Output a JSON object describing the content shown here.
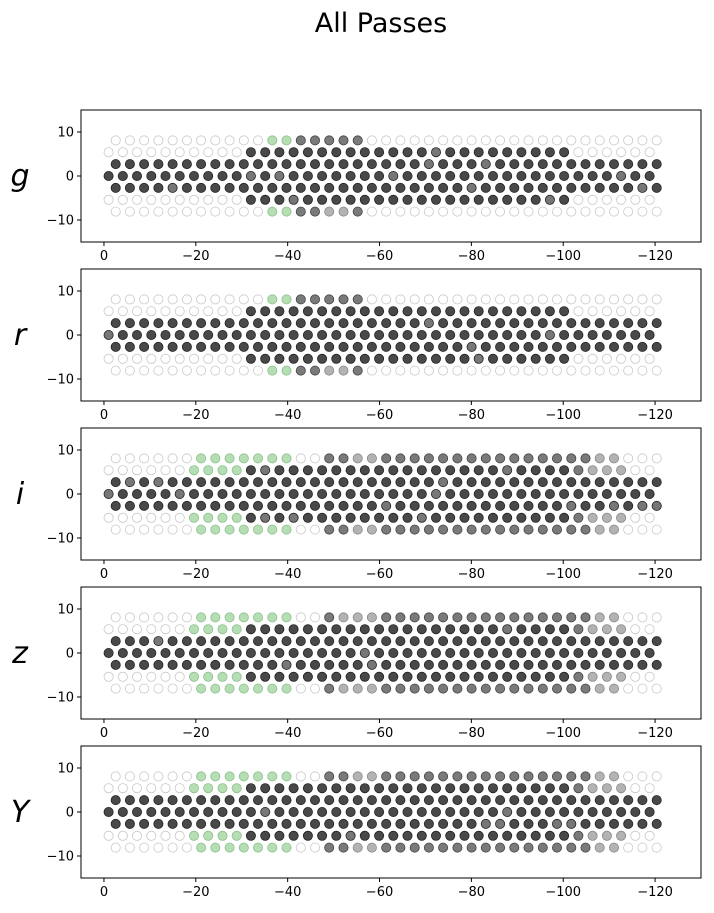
{
  "title": "All Passes",
  "colors": {
    "dense": "#3a3a3a",
    "medium": "#6b6b6b",
    "light": "#a6a6a6",
    "green": "#a8d8a8",
    "empty_edge": "#c8c8c8"
  },
  "chart_data": [
    {
      "type": "scatter",
      "label": "g",
      "x_axis_inverted": true,
      "xlim": [
        5,
        -130
      ],
      "ylim": [
        -15,
        15
      ],
      "xticks": [
        0,
        -20,
        -40,
        -60,
        -80,
        -100,
        -120
      ],
      "xtick_labels": [
        "0",
        "−20",
        "−40",
        "−60",
        "−80",
        "−100",
        "−120"
      ],
      "yticks": [
        10,
        0,
        -10
      ],
      "ytick_labels": [
        "10",
        "0",
        "−10"
      ],
      "regions": [
        {
          "x0": -36,
          "x1": -40,
          "y0": -9,
          "y1": 10,
          "shade": "green"
        },
        {
          "x0": -42,
          "x1": -56,
          "y0": -9,
          "y1": 10,
          "shade": "medium"
        },
        {
          "x0": -46,
          "x1": -53,
          "y0": -9,
          "y1": -2,
          "shade": "light"
        }
      ]
    },
    {
      "type": "scatter",
      "label": "r",
      "x_axis_inverted": true,
      "xlim": [
        5,
        -130
      ],
      "ylim": [
        -15,
        15
      ],
      "xticks": [
        0,
        -20,
        -40,
        -60,
        -80,
        -100,
        -120
      ],
      "xtick_labels": [
        "0",
        "−20",
        "−40",
        "−60",
        "−80",
        "−100",
        "−120"
      ],
      "yticks": [
        10,
        0,
        -10
      ],
      "ytick_labels": [
        "10",
        "0",
        "−10"
      ],
      "regions": [
        {
          "x0": -36,
          "x1": -40,
          "y0": -9,
          "y1": 10,
          "shade": "green"
        },
        {
          "x0": -42,
          "x1": -56,
          "y0": -9,
          "y1": 10,
          "shade": "medium"
        },
        {
          "x0": -46,
          "x1": -53,
          "y0": -9,
          "y1": -2,
          "shade": "light"
        }
      ]
    },
    {
      "type": "scatter",
      "label": "i",
      "x_axis_inverted": true,
      "xlim": [
        5,
        -130
      ],
      "ylim": [
        -15,
        15
      ],
      "xticks": [
        0,
        -20,
        -40,
        -60,
        -80,
        -100,
        -120
      ],
      "xtick_labels": [
        "0",
        "−20",
        "−40",
        "−60",
        "−80",
        "−100",
        "−120"
      ],
      "yticks": [
        10,
        0,
        -10
      ],
      "ytick_labels": [
        "10",
        "0",
        "−10"
      ],
      "regions": [
        {
          "x0": -19,
          "x1": -42,
          "y0": -10,
          "y1": 11,
          "shade": "green"
        },
        {
          "x0": -49,
          "x1": -113,
          "y0": -10,
          "y1": 11,
          "shade": "medium"
        },
        {
          "x0": -54,
          "x1": -60,
          "y0": -10,
          "y1": 11,
          "shade": "light"
        },
        {
          "x0": -106,
          "x1": -113,
          "y0": -10,
          "y1": 11,
          "shade": "light"
        }
      ]
    },
    {
      "type": "scatter",
      "label": "z",
      "x_axis_inverted": true,
      "xlim": [
        5,
        -130
      ],
      "ylim": [
        -15,
        15
      ],
      "xticks": [
        0,
        -20,
        -40,
        -60,
        -80,
        -100,
        -120
      ],
      "xtick_labels": [
        "0",
        "−20",
        "−40",
        "−60",
        "−80",
        "−100",
        "−120"
      ],
      "yticks": [
        10,
        0,
        -10
      ],
      "ytick_labels": [
        "10",
        "0",
        "−10"
      ],
      "regions": [
        {
          "x0": -19,
          "x1": -42,
          "y0": -10,
          "y1": 11,
          "shade": "green"
        },
        {
          "x0": -49,
          "x1": -113,
          "y0": -10,
          "y1": 11,
          "shade": "medium"
        },
        {
          "x0": -52,
          "x1": -60,
          "y0": -10,
          "y1": 11,
          "shade": "light"
        },
        {
          "x0": -106,
          "x1": -113,
          "y0": -10,
          "y1": 11,
          "shade": "light"
        }
      ]
    },
    {
      "type": "scatter",
      "label": "Y",
      "x_axis_inverted": true,
      "xlim": [
        5,
        -130
      ],
      "ylim": [
        -15,
        15
      ],
      "xticks": [
        0,
        -20,
        -40,
        -60,
        -80,
        -100,
        -120
      ],
      "xtick_labels": [
        "0",
        "−20",
        "−40",
        "−60",
        "−80",
        "−100",
        "−120"
      ],
      "yticks": [
        10,
        0,
        -10
      ],
      "ytick_labels": [
        "10",
        "0",
        "−10"
      ],
      "regions": [
        {
          "x0": -19,
          "x1": -42,
          "y0": -10,
          "y1": 11,
          "shade": "green"
        },
        {
          "x0": -49,
          "x1": -113,
          "y0": -10,
          "y1": 11,
          "shade": "medium"
        },
        {
          "x0": -54,
          "x1": -60,
          "y0": -10,
          "y1": 11,
          "shade": "light"
        },
        {
          "x0": -106,
          "x1": -113,
          "y0": -10,
          "y1": 11,
          "shade": "light"
        }
      ]
    }
  ]
}
